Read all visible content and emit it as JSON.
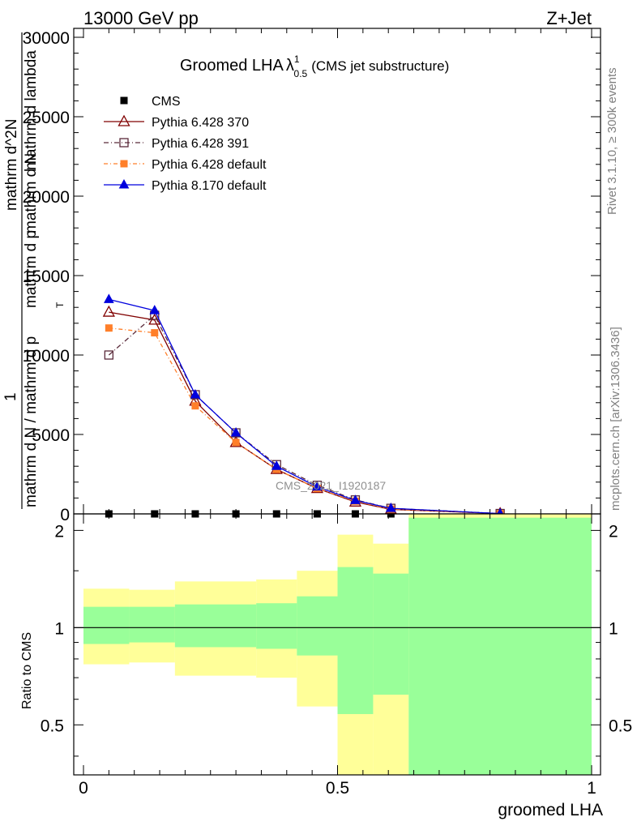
{
  "header": {
    "left": "13000 GeV pp",
    "right": "Z+Jet"
  },
  "side": {
    "rivet": "Rivet 3.1.10, ≥ 300k events",
    "mcplots": "mcplots.cern.ch [arXiv:1306.3436]"
  },
  "chart_data": [
    {
      "type": "line",
      "title_main": "Groomed LHA",
      "title_lambda": "λ",
      "title_sup": "1",
      "title_sub": "0.5",
      "title_note": "(CMS jet substructure)",
      "watermark": "CMS_2021_I1920187",
      "ylabel_top": "1",
      "ylabel_numer_a": "mathrm d N / mathrm d p",
      "ylabel_numer_b": "mathrm d N",
      "ylabel_right_a": "mathrm d^2N",
      "ylabel_right_b": "mathrm d p",
      "ylabel_right_c": "mathrm d lambda",
      "ylabel_sub_t": "T",
      "xlim": [
        0,
        1
      ],
      "ylim": [
        0,
        30000
      ],
      "yticks": [
        0,
        5000,
        10000,
        15000,
        20000,
        25000,
        30000
      ],
      "ytick_labels": [
        "0",
        "5000",
        "10000",
        "15000",
        "20000",
        "25000",
        "30000"
      ],
      "legend_position": "top-left",
      "series": [
        {
          "name": "CMS",
          "color": "#000000",
          "marker": "square",
          "x": [
            0.05,
            0.14,
            0.22,
            0.3,
            0.38,
            0.46,
            0.535,
            0.605,
            0.82
          ],
          "y": [
            0,
            0,
            0,
            0,
            0,
            0,
            0,
            0,
            0
          ]
        },
        {
          "name": "Pythia 6.428 370",
          "color": "#800000",
          "marker": "triangle-open",
          "dash": "none",
          "x": [
            0.05,
            0.14,
            0.22,
            0.3,
            0.38,
            0.46,
            0.535,
            0.605,
            0.82
          ],
          "y": [
            12700,
            12200,
            7100,
            4500,
            2800,
            1600,
            750,
            280,
            20
          ]
        },
        {
          "name": "Pythia 6.428 391",
          "color": "#5a2a3a",
          "marker": "square-open",
          "dash": "6,3,1,3",
          "x": [
            0.05,
            0.14,
            0.22,
            0.3,
            0.38,
            0.46,
            0.535,
            0.605,
            0.82
          ],
          "y": [
            10000,
            12500,
            7500,
            5100,
            3100,
            1800,
            880,
            350,
            25
          ]
        },
        {
          "name": "Pythia 6.428 default",
          "color": "#ff7f2a",
          "marker": "square",
          "dash": "5,3,1,3",
          "x": [
            0.05,
            0.14,
            0.22,
            0.3,
            0.38,
            0.46,
            0.535,
            0.605,
            0.82
          ],
          "y": [
            11700,
            11400,
            6800,
            4500,
            2800,
            1600,
            800,
            300,
            20
          ]
        },
        {
          "name": "Pythia 8.170 default",
          "color": "#0000dd",
          "marker": "triangle",
          "dash": "none",
          "x": [
            0.05,
            0.14,
            0.22,
            0.3,
            0.38,
            0.46,
            0.535,
            0.605,
            0.82
          ],
          "y": [
            13500,
            12800,
            7500,
            5100,
            3000,
            1700,
            850,
            350,
            20
          ]
        }
      ]
    },
    {
      "type": "area",
      "ylabel": "Ratio to CMS",
      "xlabel": "groomed LHA",
      "xlim": [
        0,
        1
      ],
      "ylim": [
        0.35,
        2.25
      ],
      "log_scale_y": true,
      "yticks": [
        0.5,
        1,
        2
      ],
      "ytick_labels": [
        "0.5",
        "1",
        "2"
      ],
      "xticks": [
        0,
        0.5,
        1
      ],
      "xtick_labels": [
        "0",
        "0.5",
        "1"
      ],
      "reference_line": 1,
      "bins": [
        {
          "lo": 0.0,
          "hi": 0.09,
          "green": [
            0.89,
            1.16
          ],
          "yellow": [
            0.77,
            1.32
          ]
        },
        {
          "lo": 0.09,
          "hi": 0.18,
          "green": [
            0.9,
            1.16
          ],
          "yellow": [
            0.78,
            1.31
          ]
        },
        {
          "lo": 0.18,
          "hi": 0.34,
          "green": [
            0.87,
            1.18
          ],
          "yellow": [
            0.71,
            1.39
          ]
        },
        {
          "lo": 0.34,
          "hi": 0.42,
          "green": [
            0.86,
            1.19
          ],
          "yellow": [
            0.7,
            1.41
          ]
        },
        {
          "lo": 0.42,
          "hi": 0.5,
          "green": [
            0.82,
            1.25
          ],
          "yellow": [
            0.57,
            1.5
          ]
        },
        {
          "lo": 0.5,
          "hi": 0.57,
          "green": [
            0.54,
            1.54
          ],
          "yellow": [
            0.35,
            1.94
          ]
        },
        {
          "lo": 0.57,
          "hi": 0.64,
          "green": [
            0.62,
            1.47
          ],
          "yellow": [
            0.35,
            1.82
          ]
        },
        {
          "lo": 0.64,
          "hi": 1.0,
          "green": [
            0.35,
            2.19
          ],
          "yellow": [
            0.35,
            2.25
          ]
        }
      ],
      "colors": {
        "green": "#99ff99",
        "yellow": "#ffff99"
      }
    }
  ]
}
